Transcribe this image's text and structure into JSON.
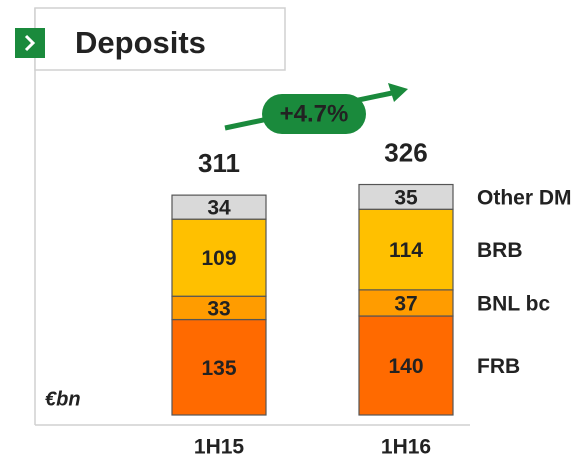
{
  "chart_data": {
    "type": "stacked_bar",
    "title": "Deposits",
    "unit_label": "€bn",
    "annotation": "+4.7%",
    "categories": [
      "1H15",
      "1H16"
    ],
    "totals": [
      311,
      326
    ],
    "series": [
      {
        "name": "FRB",
        "color": "#ff6a00",
        "values": [
          135,
          140
        ]
      },
      {
        "name": "BNL bc",
        "color": "#ff9c00",
        "values": [
          33,
          37
        ]
      },
      {
        "name": "BRB",
        "color": "#ffc000",
        "values": [
          109,
          114
        ]
      },
      {
        "name": "Other DM",
        "color": "#d9d9d9",
        "values": [
          34,
          35
        ]
      }
    ]
  }
}
